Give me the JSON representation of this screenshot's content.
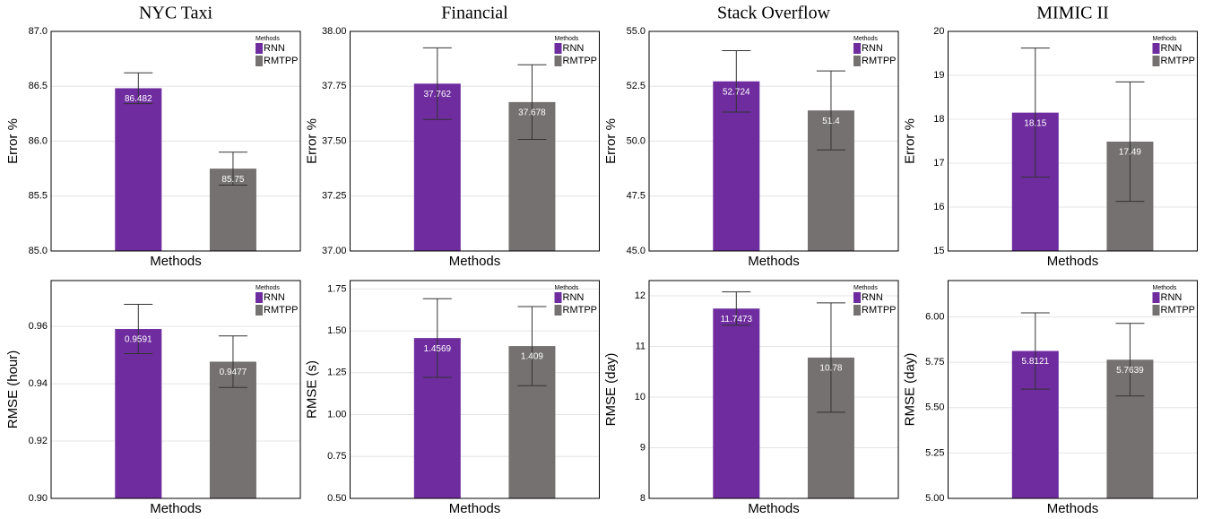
{
  "chart_data": [
    {
      "type": "bar",
      "title": "NYC Taxi",
      "ylabel": "Error %",
      "xlabel": "Methods",
      "legend_title": "Methods",
      "grid": true,
      "ylim": [
        85,
        87
      ],
      "yticks": [
        {
          "value": 85,
          "label": "85.0"
        },
        85.5,
        {
          "value": 86,
          "label": "86.0"
        },
        86.5,
        {
          "value": 87,
          "label": "87.0"
        }
      ],
      "series": [
        {
          "name": "RNN",
          "color": "#6e2c9e",
          "values": [
            86.482
          ],
          "errors": [
            0.14
          ]
        },
        {
          "name": "RMTPP",
          "color": "#757170",
          "values": [
            85.75
          ],
          "errors": [
            0.15
          ]
        }
      ]
    },
    {
      "type": "bar",
      "title": "Financial",
      "ylabel": "Error %",
      "xlabel": "Methods",
      "legend_title": "Methods",
      "grid": true,
      "ylim": [
        37,
        38
      ],
      "yticks": [
        {
          "value": 37,
          "label": "37.00"
        },
        37.25,
        {
          "value": 37.5,
          "label": "37.50"
        },
        37.75,
        {
          "value": 38,
          "label": "38.00"
        }
      ],
      "series": [
        {
          "name": "RNN",
          "color": "#6e2c9e",
          "values": [
            37.762
          ],
          "errors": [
            0.163
          ]
        },
        {
          "name": "RMTPP",
          "color": "#757170",
          "values": [
            37.678
          ],
          "errors": [
            0.17
          ]
        }
      ]
    },
    {
      "type": "bar",
      "title": "Stack Overflow",
      "ylabel": "Error %",
      "xlabel": "Methods",
      "legend_title": "Methods",
      "grid": true,
      "ylim": [
        45,
        55
      ],
      "yticks": [
        {
          "value": 45,
          "label": "45.0"
        },
        47.5,
        {
          "value": 50,
          "label": "50.0"
        },
        52.5,
        {
          "value": 55,
          "label": "55.0"
        }
      ],
      "series": [
        {
          "name": "RNN",
          "color": "#6e2c9e",
          "values": [
            52.724
          ],
          "errors": [
            1.4
          ]
        },
        {
          "name": "RMTPP",
          "color": "#757170",
          "values": [
            51.4
          ],
          "errors": [
            1.8
          ]
        }
      ]
    },
    {
      "type": "bar",
      "title": "MIMIC II",
      "ylabel": "Error %",
      "xlabel": "Methods",
      "legend_title": "Methods",
      "grid": true,
      "ylim": [
        15,
        20
      ],
      "yticks": [
        15,
        16,
        17,
        18,
        19,
        20
      ],
      "series": [
        {
          "name": "RNN",
          "color": "#6e2c9e",
          "values": [
            18.15
          ],
          "errors": [
            1.47
          ]
        },
        {
          "name": "RMTPP",
          "color": "#757170",
          "values": [
            17.49
          ],
          "errors": [
            1.36
          ]
        }
      ]
    },
    {
      "type": "bar",
      "ylabel": "RMSE (hour)",
      "xlabel": "Methods",
      "legend_title": "Methods",
      "grid": true,
      "ylim": [
        0.9,
        0.976
      ],
      "yticks": [
        {
          "value": 0.9,
          "label": "0.90"
        },
        0.92,
        0.94,
        0.96
      ],
      "series": [
        {
          "name": "RNN",
          "color": "#6e2c9e",
          "values": [
            0.9591
          ],
          "errors": [
            0.0086
          ]
        },
        {
          "name": "RMTPP",
          "color": "#757170",
          "values": [
            0.9477
          ],
          "errors": [
            0.009
          ]
        }
      ]
    },
    {
      "type": "bar",
      "ylabel": "RMSE (s)",
      "xlabel": "Methods",
      "legend_title": "Methods",
      "grid": true,
      "ylim": [
        0.5,
        1.8
      ],
      "yticks": [
        {
          "value": 0.5,
          "label": "0.50"
        },
        0.75,
        {
          "value": 1,
          "label": "1.00"
        },
        1.25,
        {
          "value": 1.5,
          "label": "1.50"
        },
        1.75
      ],
      "series": [
        {
          "name": "RNN",
          "color": "#6e2c9e",
          "values": [
            1.4569
          ],
          "errors": [
            0.235
          ]
        },
        {
          "name": "RMTPP",
          "color": "#757170",
          "values": [
            1.409
          ],
          "errors": [
            0.236
          ]
        }
      ]
    },
    {
      "type": "bar",
      "ylabel": "RMSE (day)",
      "xlabel": "Methods",
      "legend_title": "Methods",
      "grid": true,
      "ylim": [
        8,
        12.3
      ],
      "yticks": [
        8,
        9,
        10,
        11,
        12
      ],
      "series": [
        {
          "name": "RNN",
          "color": "#6e2c9e",
          "values": [
            11.7473
          ],
          "errors": [
            0.33
          ]
        },
        {
          "name": "RMTPP",
          "color": "#757170",
          "values": [
            10.78
          ],
          "errors": [
            1.08
          ]
        }
      ]
    },
    {
      "type": "bar",
      "ylabel": "RMSE (day)",
      "xlabel": "Methods",
      "legend_title": "Methods",
      "grid": true,
      "ylim": [
        5,
        6.2
      ],
      "yticks": [
        {
          "value": 5,
          "label": "5.00"
        },
        5.25,
        {
          "value": 5.5,
          "label": "5.50"
        },
        5.75,
        {
          "value": 6,
          "label": "6.00"
        }
      ],
      "series": [
        {
          "name": "RNN",
          "color": "#6e2c9e",
          "values": [
            5.8121
          ],
          "errors": [
            0.21
          ]
        },
        {
          "name": "RMTPP",
          "color": "#757170",
          "values": [
            5.7639
          ],
          "errors": [
            0.2
          ]
        }
      ]
    }
  ]
}
